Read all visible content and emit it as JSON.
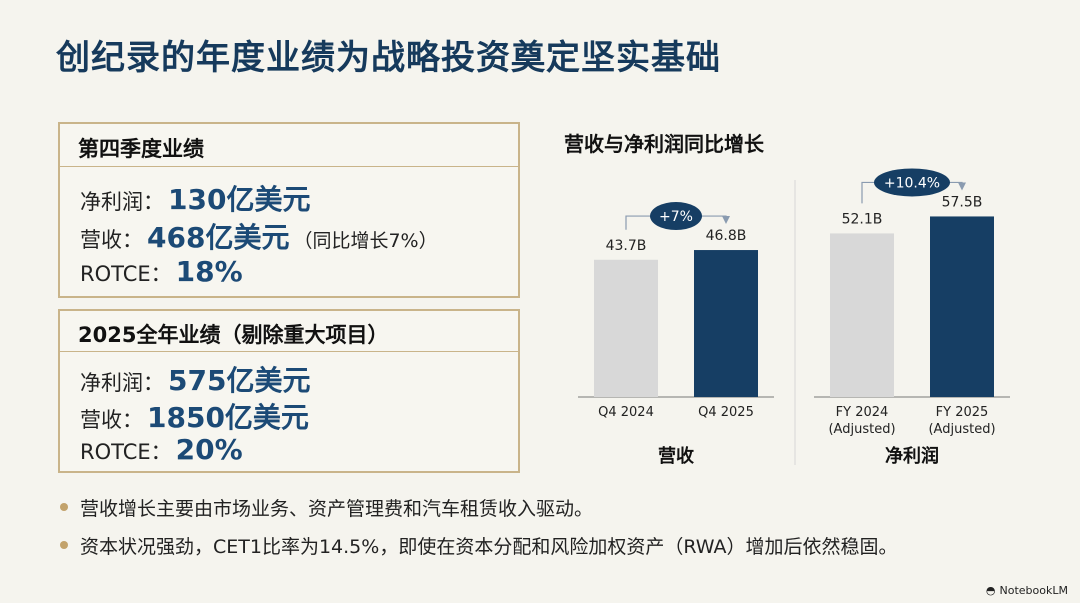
{
  "title": "创纪录的年度业绩为战略投资奠定坚实基础",
  "q4_box": {
    "heading": "第四季度业绩",
    "rows": [
      {
        "label": "净利润：",
        "value": "130亿美元",
        "note": ""
      },
      {
        "label": "营收：",
        "value": "468亿美元",
        "note": "（同比增长7%）"
      },
      {
        "label": "ROTCE：",
        "value": "18%",
        "note": ""
      }
    ]
  },
  "fy_box": {
    "heading": "2025全年业绩（剔除重大项目）",
    "rows": [
      {
        "label": "净利润：",
        "value": "575亿美元"
      },
      {
        "label": "营收：",
        "value": "1850亿美元"
      },
      {
        "label": "ROTCE：",
        "value": "20%"
      }
    ]
  },
  "bullets": [
    "营收增长主要由市场业务、资产管理费和汽车租赁收入驱动。",
    "资本状况强劲，CET1比率为14.5%，即使在资本分配和风险加权资产（RWA）增加后依然稳固。"
  ],
  "chart_title": "营收与净利润同比增长",
  "brand": "NotebookLM",
  "colors": {
    "prior": "#d8d8d8",
    "current": "#163e64",
    "title": "#163a5c",
    "accent": "#c2a26b"
  },
  "chart_data": [
    {
      "type": "bar",
      "title": "营收",
      "categories": [
        "Q4 2024",
        "Q4 2025"
      ],
      "values": [
        43.7,
        46.8
      ],
      "value_labels": [
        "43.7B",
        "46.8B"
      ],
      "growth_label": "+7%",
      "unit": "B"
    },
    {
      "type": "bar",
      "title": "净利润",
      "categories": [
        "FY 2024\n(Adjusted)",
        "FY 2025\n(Adjusted)"
      ],
      "values": [
        52.1,
        57.5
      ],
      "value_labels": [
        "52.1B",
        "57.5B"
      ],
      "growth_label": "+10.4%",
      "unit": "B"
    }
  ]
}
